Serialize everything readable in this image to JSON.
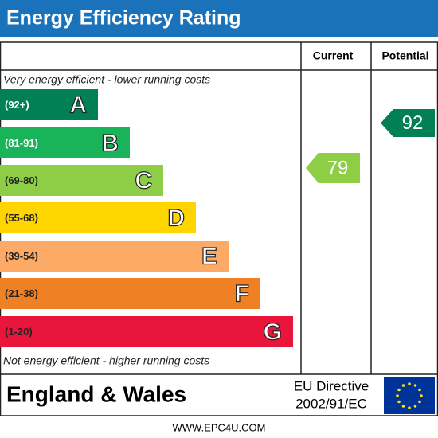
{
  "header": {
    "title": "Energy Efficiency Rating"
  },
  "columns": [
    "Current",
    "Potential"
  ],
  "top_note": "Very energy efficient - lower running costs",
  "bottom_note": "Not energy efficient - higher running costs",
  "bands": [
    {
      "range": "(92+)",
      "letter": "A",
      "color": "#008054"
    },
    {
      "range": "(81-91)",
      "letter": "B",
      "color": "#19b459"
    },
    {
      "range": "(69-80)",
      "letter": "C",
      "color": "#8dce46"
    },
    {
      "range": "(55-68)",
      "letter": "D",
      "color": "#ffd500"
    },
    {
      "range": "(39-54)",
      "letter": "E",
      "color": "#fcaa65"
    },
    {
      "range": "(21-38)",
      "letter": "F",
      "color": "#ef8023"
    },
    {
      "range": "(1-20)",
      "letter": "G",
      "color": "#e9153b"
    }
  ],
  "current": {
    "value": 79,
    "color": "#8dce46"
  },
  "potential": {
    "value": 92,
    "color": "#008054"
  },
  "region": "England & Wales",
  "directive": [
    "EU Directive",
    "2002/91/EC"
  ],
  "website": "WWW.EPC4U.COM"
}
